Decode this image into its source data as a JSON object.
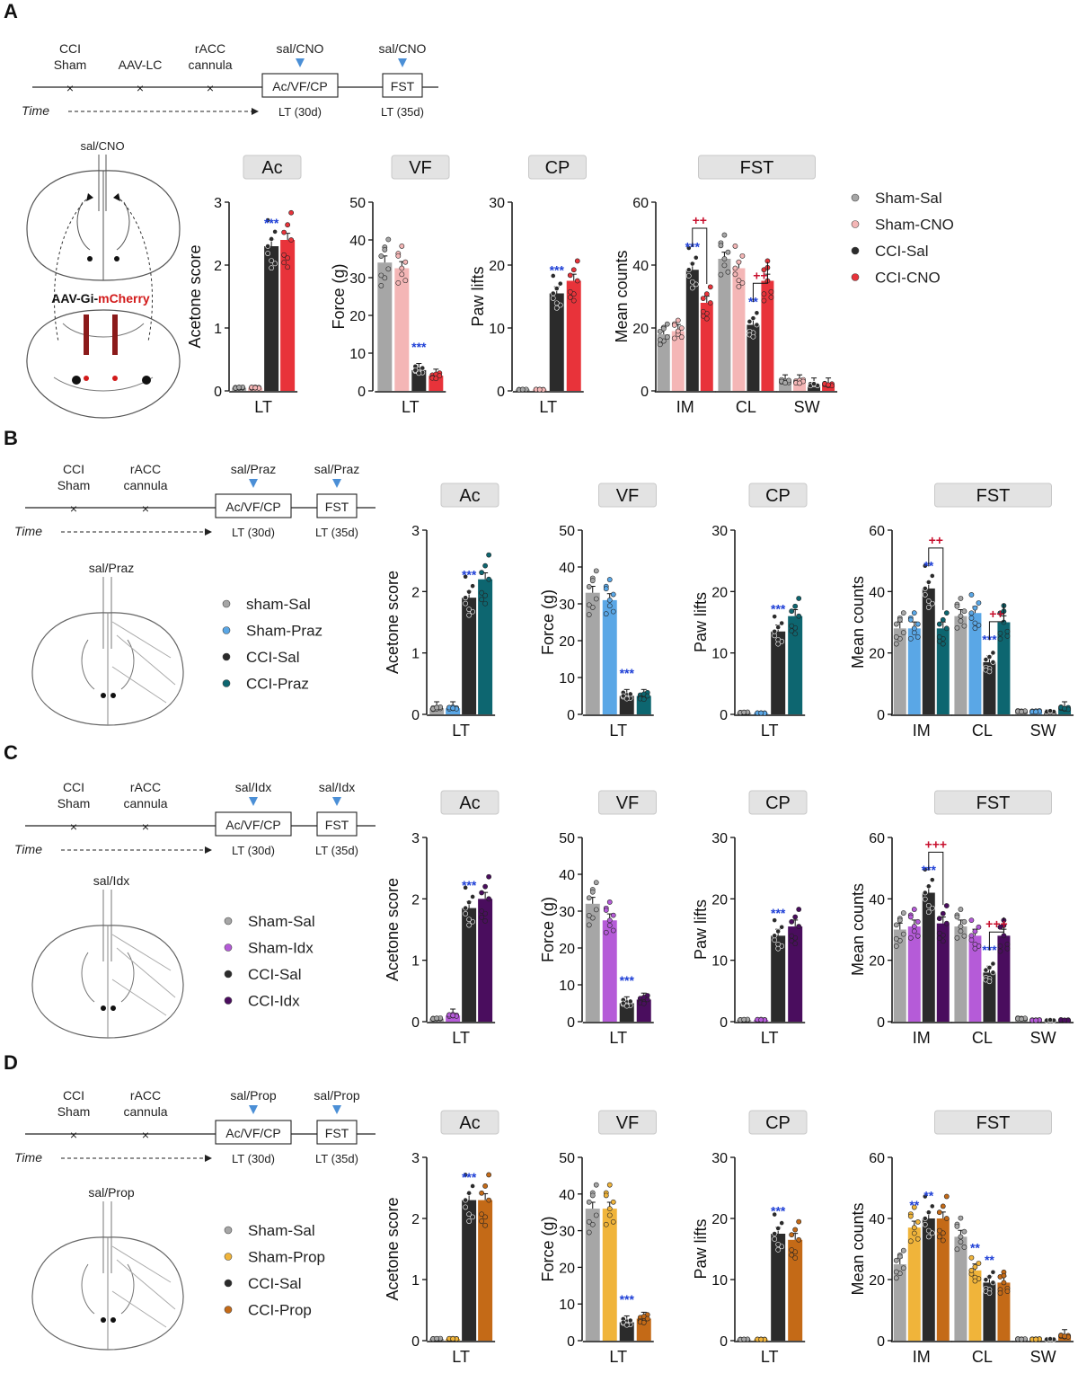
{
  "panels": [
    {
      "letter": "A",
      "timeline": {
        "events": [
          "CCI\nSham",
          "AAV-LC",
          "rACC\ncannula"
        ],
        "treat_labels": [
          "sal/CNO",
          "sal/CNO"
        ],
        "boxes": [
          "Ac/VF/CP",
          "FST"
        ],
        "time_label": "Time",
        "lt_labels": [
          "LT (30d)",
          "LT (35d)"
        ]
      },
      "brain": {
        "label": "sal/CNO",
        "virus_prefix": "AAV-Gi-",
        "virus_suffix": "mCherry"
      },
      "legend": [
        {
          "name": "Sham-Sal",
          "color": "#a6a6a6"
        },
        {
          "name": "Sham-CNO",
          "color": "#f4b6b6"
        },
        {
          "name": "CCI-Sal",
          "color": "#2b2b2b"
        },
        {
          "name": "CCI-CNO",
          "color": "#e8333a"
        }
      ]
    },
    {
      "letter": "B",
      "timeline": {
        "events": [
          "CCI\nSham",
          "rACC\ncannula"
        ],
        "treat_labels": [
          "sal/Praz",
          "sal/Praz"
        ],
        "boxes": [
          "Ac/VF/CP",
          "FST"
        ],
        "time_label": "Time",
        "lt_labels": [
          "LT (30d)",
          "LT (35d)"
        ]
      },
      "brain": {
        "label": "sal/Praz"
      },
      "legend": [
        {
          "name": "sham-Sal",
          "color": "#a6a6a6"
        },
        {
          "name": "Sham-Praz",
          "color": "#5aa7e6"
        },
        {
          "name": "CCI-Sal",
          "color": "#2b2b2b"
        },
        {
          "name": "CCI-Praz",
          "color": "#0d6670"
        }
      ]
    },
    {
      "letter": "C",
      "timeline": {
        "events": [
          "CCI\nSham",
          "rACC\ncannula"
        ],
        "treat_labels": [
          "sal/Idx",
          "sal/Idx"
        ],
        "boxes": [
          "Ac/VF/CP",
          "FST"
        ],
        "time_label": "Time",
        "lt_labels": [
          "LT (30d)",
          "LT (35d)"
        ]
      },
      "brain": {
        "label": "sal/Idx"
      },
      "legend": [
        {
          "name": "Sham-Sal",
          "color": "#a6a6a6"
        },
        {
          "name": "Sham-Idx",
          "color": "#b55bd8"
        },
        {
          "name": "CCI-Sal",
          "color": "#2b2b2b"
        },
        {
          "name": "CCI-Idx",
          "color": "#4a0d5e"
        }
      ]
    },
    {
      "letter": "D",
      "timeline": {
        "events": [
          "CCI\nSham",
          "rACC\ncannula"
        ],
        "treat_labels": [
          "sal/Prop",
          "sal/Prop"
        ],
        "boxes": [
          "Ac/VF/CP",
          "FST"
        ],
        "time_label": "Time",
        "lt_labels": [
          "LT (30d)",
          "LT (35d)"
        ]
      },
      "brain": {
        "label": "sal/Prop"
      },
      "legend": [
        {
          "name": "Sham-Sal",
          "color": "#a6a6a6"
        },
        {
          "name": "Sham-Prop",
          "color": "#f0b43a"
        },
        {
          "name": "CCI-Sal",
          "color": "#2b2b2b"
        },
        {
          "name": "CCI-Prop",
          "color": "#c46a17"
        }
      ]
    }
  ],
  "chart_data": [
    {
      "panel": "A",
      "type": "bar",
      "title": "Ac",
      "ylabel": "Acetone score",
      "ylim": [
        0,
        3
      ],
      "yticks": [
        0,
        1,
        2,
        3
      ],
      "categories": [
        "LT"
      ],
      "series": [
        {
          "name": "Sham-Sal",
          "values": [
            0.05
          ]
        },
        {
          "name": "Sham-CNO",
          "values": [
            0.05
          ]
        },
        {
          "name": "CCI-Sal",
          "values": [
            2.3
          ]
        },
        {
          "name": "CCI-CNO",
          "values": [
            2.4
          ]
        }
      ],
      "annotations": [
        {
          "text": "***",
          "color": "blue",
          "group": 0,
          "bar": 2
        }
      ]
    },
    {
      "panel": "A",
      "type": "bar",
      "title": "VF",
      "ylabel": "Force (g)",
      "ylim": [
        0,
        50
      ],
      "yticks": [
        0,
        10,
        20,
        30,
        40,
        50
      ],
      "categories": [
        "LT"
      ],
      "series": [
        {
          "name": "Sham-Sal",
          "values": [
            34
          ]
        },
        {
          "name": "Sham-CNO",
          "values": [
            32.5
          ]
        },
        {
          "name": "CCI-Sal",
          "values": [
            5.5
          ]
        },
        {
          "name": "CCI-CNO",
          "values": [
            4
          ]
        }
      ],
      "annotations": [
        {
          "text": "***",
          "color": "blue",
          "group": 0,
          "bar": 2
        }
      ]
    },
    {
      "panel": "A",
      "type": "bar",
      "title": "CP",
      "ylabel": "Paw lifts",
      "ylim": [
        0,
        30
      ],
      "yticks": [
        0,
        10,
        20,
        30
      ],
      "categories": [
        "LT"
      ],
      "series": [
        {
          "name": "Sham-Sal",
          "values": [
            0.2
          ]
        },
        {
          "name": "Sham-CNO",
          "values": [
            0.2
          ]
        },
        {
          "name": "CCI-Sal",
          "values": [
            15.5
          ]
        },
        {
          "name": "CCI-CNO",
          "values": [
            17.5
          ]
        }
      ],
      "annotations": [
        {
          "text": "***",
          "color": "blue",
          "group": 0,
          "bar": 2
        }
      ]
    },
    {
      "panel": "A",
      "type": "bar",
      "title": "FST",
      "ylabel": "Mean counts",
      "ylim": [
        0,
        60
      ],
      "yticks": [
        0,
        20,
        40,
        60
      ],
      "categories": [
        "IM",
        "CL",
        "SW"
      ],
      "series": [
        {
          "name": "Sham-Sal",
          "values": [
            18,
            42,
            3
          ]
        },
        {
          "name": "Sham-CNO",
          "values": [
            19,
            39,
            3
          ]
        },
        {
          "name": "CCI-Sal",
          "values": [
            38.5,
            21,
            2
          ]
        },
        {
          "name": "CCI-CNO",
          "values": [
            28,
            35,
            2
          ]
        }
      ],
      "annotations": [
        {
          "text": "***",
          "color": "blue",
          "group": 0,
          "bar": 2
        },
        {
          "text": "++",
          "color": "red",
          "group": 0,
          "bar": 2,
          "bracket": true
        },
        {
          "text": "**",
          "color": "blue",
          "group": 1,
          "bar": 2
        },
        {
          "text": "++",
          "color": "red",
          "group": 1,
          "bar": 2,
          "bracket": true
        }
      ]
    },
    {
      "panel": "B",
      "type": "bar",
      "title": "Ac",
      "ylabel": "Acetone score",
      "ylim": [
        0,
        3
      ],
      "yticks": [
        0,
        1,
        2,
        3
      ],
      "categories": [
        "LT"
      ],
      "series": [
        {
          "name": "sham-Sal",
          "values": [
            0.1
          ]
        },
        {
          "name": "Sham-Praz",
          "values": [
            0.1
          ]
        },
        {
          "name": "CCI-Sal",
          "values": [
            1.9
          ]
        },
        {
          "name": "CCI-Praz",
          "values": [
            2.2
          ]
        }
      ],
      "annotations": [
        {
          "text": "***",
          "color": "blue",
          "group": 0,
          "bar": 2
        }
      ]
    },
    {
      "panel": "B",
      "type": "bar",
      "title": "VF",
      "ylabel": "Force (g)",
      "ylim": [
        0,
        50
      ],
      "yticks": [
        0,
        10,
        20,
        30,
        40,
        50
      ],
      "categories": [
        "LT"
      ],
      "series": [
        {
          "name": "sham-Sal",
          "values": [
            33
          ]
        },
        {
          "name": "Sham-Praz",
          "values": [
            31
          ]
        },
        {
          "name": "CCI-Sal",
          "values": [
            5
          ]
        },
        {
          "name": "CCI-Praz",
          "values": [
            5
          ]
        }
      ],
      "annotations": [
        {
          "text": "***",
          "color": "blue",
          "group": 0,
          "bar": 2
        }
      ]
    },
    {
      "panel": "B",
      "type": "bar",
      "title": "CP",
      "ylabel": "Paw lifts",
      "ylim": [
        0,
        30
      ],
      "yticks": [
        0,
        10,
        20,
        30
      ],
      "categories": [
        "LT"
      ],
      "series": [
        {
          "name": "sham-Sal",
          "values": [
            0.3
          ]
        },
        {
          "name": "Sham-Praz",
          "values": [
            0.2
          ]
        },
        {
          "name": "CCI-Sal",
          "values": [
            13.5
          ]
        },
        {
          "name": "CCI-Praz",
          "values": [
            16
          ]
        }
      ],
      "annotations": [
        {
          "text": "***",
          "color": "blue",
          "group": 0,
          "bar": 2
        }
      ]
    },
    {
      "panel": "B",
      "type": "bar",
      "title": "FST",
      "ylabel": "Mean counts",
      "ylim": [
        0,
        60
      ],
      "yticks": [
        0,
        20,
        40,
        60
      ],
      "categories": [
        "IM",
        "CL",
        "SW"
      ],
      "series": [
        {
          "name": "sham-Sal",
          "values": [
            28,
            32,
            1
          ]
        },
        {
          "name": "Sham-Praz",
          "values": [
            28,
            33,
            1
          ]
        },
        {
          "name": "CCI-Sal",
          "values": [
            41,
            17,
            1
          ]
        },
        {
          "name": "CCI-Praz",
          "values": [
            28,
            30,
            2
          ]
        }
      ],
      "annotations": [
        {
          "text": "**",
          "color": "blue",
          "group": 0,
          "bar": 2
        },
        {
          "text": "++",
          "color": "red",
          "group": 0,
          "bar": 2,
          "bracket": true
        },
        {
          "text": "***",
          "color": "blue",
          "group": 1,
          "bar": 2
        },
        {
          "text": "++",
          "color": "red",
          "group": 1,
          "bar": 2,
          "bracket": true
        }
      ]
    },
    {
      "panel": "C",
      "type": "bar",
      "title": "Ac",
      "ylabel": "Acetone score",
      "ylim": [
        0,
        3
      ],
      "yticks": [
        0,
        1,
        2,
        3
      ],
      "categories": [
        "LT"
      ],
      "series": [
        {
          "name": "Sham-Sal",
          "values": [
            0.05
          ]
        },
        {
          "name": "Sham-Idx",
          "values": [
            0.1
          ]
        },
        {
          "name": "CCI-Sal",
          "values": [
            1.85
          ]
        },
        {
          "name": "CCI-Idx",
          "values": [
            2.0
          ]
        }
      ],
      "annotations": [
        {
          "text": "***",
          "color": "blue",
          "group": 0,
          "bar": 2
        }
      ]
    },
    {
      "panel": "C",
      "type": "bar",
      "title": "VF",
      "ylabel": "Force (g)",
      "ylim": [
        0,
        50
      ],
      "yticks": [
        0,
        10,
        20,
        30,
        40,
        50
      ],
      "categories": [
        "LT"
      ],
      "series": [
        {
          "name": "Sham-Sal",
          "values": [
            32
          ]
        },
        {
          "name": "Sham-Idx",
          "values": [
            27.5
          ]
        },
        {
          "name": "CCI-Sal",
          "values": [
            5
          ]
        },
        {
          "name": "CCI-Idx",
          "values": [
            6
          ]
        }
      ],
      "annotations": [
        {
          "text": "***",
          "color": "blue",
          "group": 0,
          "bar": 2
        }
      ]
    },
    {
      "panel": "C",
      "type": "bar",
      "title": "CP",
      "ylabel": "Paw lifts",
      "ylim": [
        0,
        30
      ],
      "yticks": [
        0,
        10,
        20,
        30
      ],
      "categories": [
        "LT"
      ],
      "series": [
        {
          "name": "Sham-Sal",
          "values": [
            0.3
          ]
        },
        {
          "name": "Sham-Idx",
          "values": [
            0.3
          ]
        },
        {
          "name": "CCI-Sal",
          "values": [
            14
          ]
        },
        {
          "name": "CCI-Idx",
          "values": [
            15.5
          ]
        }
      ],
      "annotations": [
        {
          "text": "***",
          "color": "blue",
          "group": 0,
          "bar": 2
        }
      ]
    },
    {
      "panel": "C",
      "type": "bar",
      "title": "FST",
      "ylabel": "Mean counts",
      "ylim": [
        0,
        60
      ],
      "yticks": [
        0,
        20,
        40,
        60
      ],
      "categories": [
        "IM",
        "CL",
        "SW"
      ],
      "series": [
        {
          "name": "Sham-Sal",
          "values": [
            30,
            31,
            1
          ]
        },
        {
          "name": "Sham-Idx",
          "values": [
            31,
            28,
            0.5
          ]
        },
        {
          "name": "CCI-Sal",
          "values": [
            42,
            16,
            0.5
          ]
        },
        {
          "name": "CCI-Idx",
          "values": [
            32,
            28,
            0.5
          ]
        }
      ],
      "annotations": [
        {
          "text": "***",
          "color": "blue",
          "group": 0,
          "bar": 2
        },
        {
          "text": "+++",
          "color": "red",
          "group": 0,
          "bar": 2,
          "bracket": true
        },
        {
          "text": "***",
          "color": "blue",
          "group": 1,
          "bar": 2
        },
        {
          "text": "+++",
          "color": "red",
          "group": 1,
          "bar": 2,
          "bracket": true
        }
      ]
    },
    {
      "panel": "D",
      "type": "bar",
      "title": "Ac",
      "ylabel": "Acetone score",
      "ylim": [
        0,
        3
      ],
      "yticks": [
        0,
        1,
        2,
        3
      ],
      "categories": [
        "LT"
      ],
      "series": [
        {
          "name": "Sham-Sal",
          "values": [
            0.03
          ]
        },
        {
          "name": "Sham-Prop",
          "values": [
            0.03
          ]
        },
        {
          "name": "CCI-Sal",
          "values": [
            2.3
          ]
        },
        {
          "name": "CCI-Prop",
          "values": [
            2.3
          ]
        }
      ],
      "annotations": [
        {
          "text": "***",
          "color": "blue",
          "group": 0,
          "bar": 2
        }
      ]
    },
    {
      "panel": "D",
      "type": "bar",
      "title": "VF",
      "ylabel": "Force (g)",
      "ylim": [
        0,
        50
      ],
      "yticks": [
        0,
        10,
        20,
        30,
        40,
        50
      ],
      "categories": [
        "LT"
      ],
      "series": [
        {
          "name": "Sham-Sal",
          "values": [
            36
          ]
        },
        {
          "name": "Sham-Prop",
          "values": [
            36
          ]
        },
        {
          "name": "CCI-Sal",
          "values": [
            5
          ]
        },
        {
          "name": "CCI-Prop",
          "values": [
            6
          ]
        }
      ],
      "annotations": [
        {
          "text": "***",
          "color": "blue",
          "group": 0,
          "bar": 2
        }
      ]
    },
    {
      "panel": "D",
      "type": "bar",
      "title": "CP",
      "ylabel": "Paw lifts",
      "ylim": [
        0,
        30
      ],
      "yticks": [
        0,
        10,
        20,
        30
      ],
      "categories": [
        "LT"
      ],
      "series": [
        {
          "name": "Sham-Sal",
          "values": [
            0.2
          ]
        },
        {
          "name": "Sham-Prop",
          "values": [
            0.2
          ]
        },
        {
          "name": "CCI-Sal",
          "values": [
            17.5
          ]
        },
        {
          "name": "CCI-Prop",
          "values": [
            16.5
          ]
        }
      ],
      "annotations": [
        {
          "text": "***",
          "color": "blue",
          "group": 0,
          "bar": 2
        }
      ]
    },
    {
      "panel": "D",
      "type": "bar",
      "title": "FST",
      "ylabel": "Mean counts",
      "ylim": [
        0,
        60
      ],
      "yticks": [
        0,
        20,
        40,
        60
      ],
      "categories": [
        "IM",
        "CL",
        "SW"
      ],
      "series": [
        {
          "name": "Sham-Sal",
          "values": [
            25,
            34,
            0.5
          ]
        },
        {
          "name": "Sham-Prop",
          "values": [
            37,
            23,
            0.5
          ]
        },
        {
          "name": "CCI-Sal",
          "values": [
            40,
            19,
            0.5
          ]
        },
        {
          "name": "CCI-Prop",
          "values": [
            40,
            19,
            1.5
          ]
        }
      ],
      "annotations": [
        {
          "text": "**",
          "color": "blue",
          "group": 0,
          "bar": 1
        },
        {
          "text": "**",
          "color": "blue",
          "group": 0,
          "bar": 2
        },
        {
          "text": "**",
          "color": "blue",
          "group": 1,
          "bar": 1
        },
        {
          "text": "**",
          "color": "blue",
          "group": 1,
          "bar": 2
        }
      ]
    }
  ]
}
